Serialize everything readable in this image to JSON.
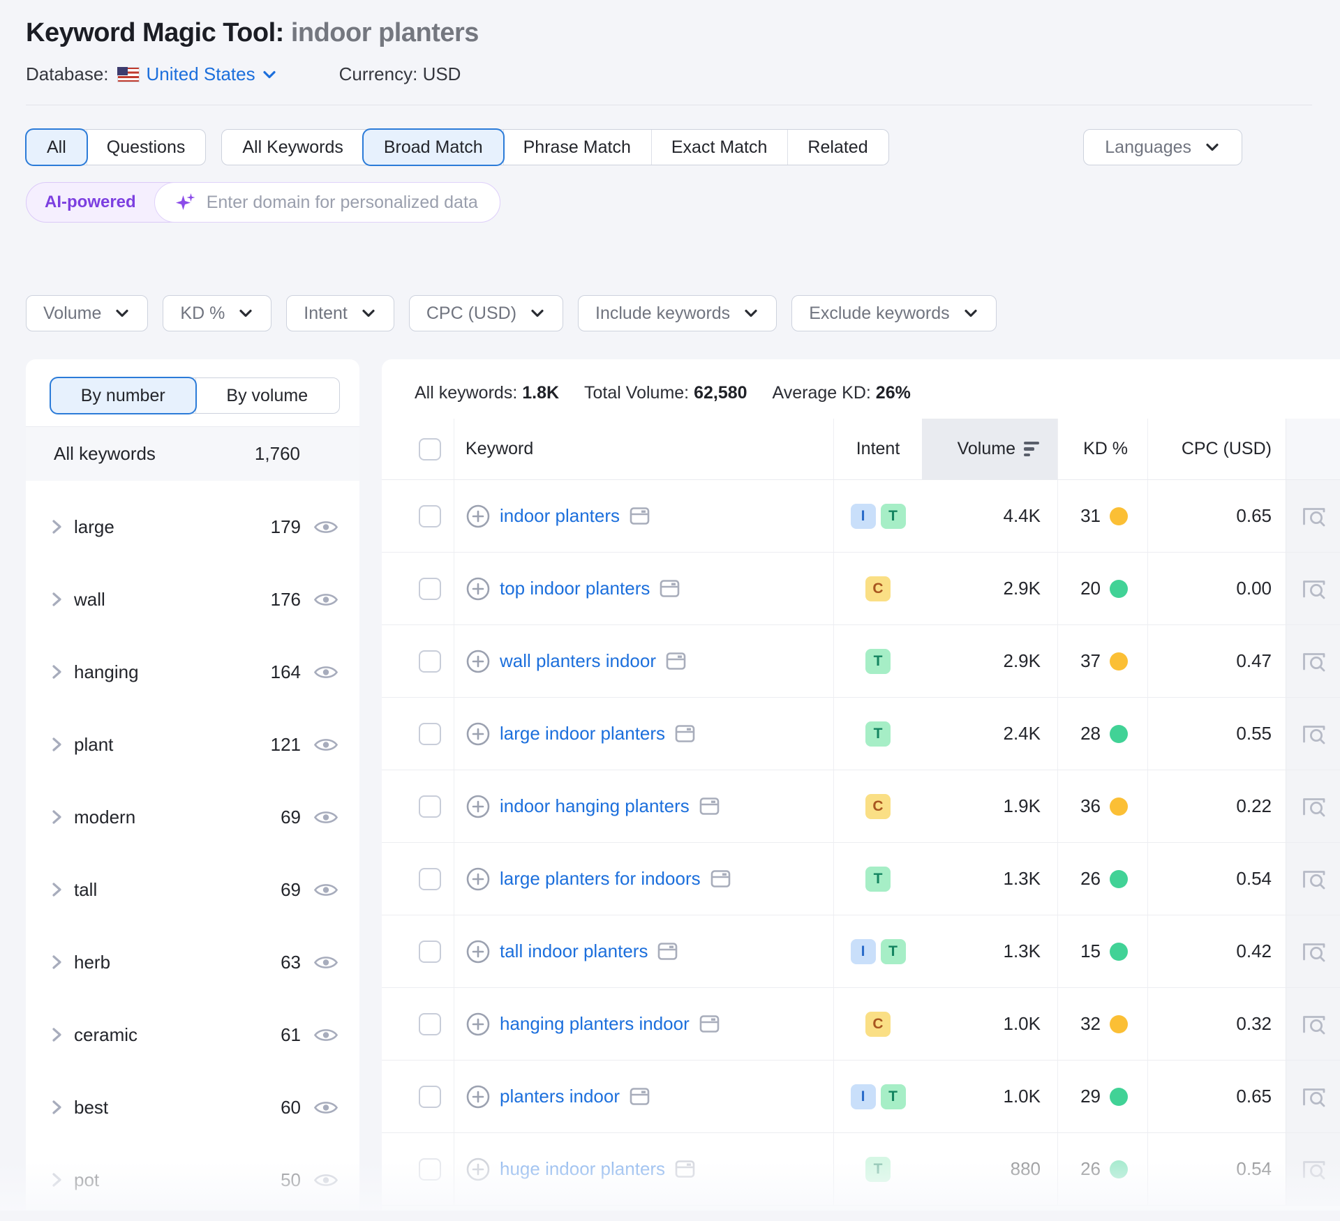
{
  "header": {
    "title": "Keyword Magic Tool:",
    "query": "indoor planters",
    "database_label": "Database:",
    "database_value": "United States",
    "currency_label": "Currency:",
    "currency_value": "USD"
  },
  "match_tabs": {
    "group1": [
      "All",
      "Questions"
    ],
    "group1_selected": "All",
    "group2": [
      "All Keywords",
      "Broad Match",
      "Phrase Match",
      "Exact Match",
      "Related"
    ],
    "group2_selected": "Broad Match",
    "languages_label": "Languages"
  },
  "ai_bar": {
    "badge": "AI-powered",
    "placeholder": "Enter domain for personalized data"
  },
  "filters": [
    "Volume",
    "KD %",
    "Intent",
    "CPC (USD)",
    "Include keywords",
    "Exclude keywords"
  ],
  "sidebar": {
    "toggle": [
      "By number",
      "By volume"
    ],
    "toggle_selected": "By number",
    "all_row": {
      "label": "All keywords",
      "count": "1,760"
    },
    "groups": [
      {
        "label": "large",
        "count": "179",
        "faded": false
      },
      {
        "label": "wall",
        "count": "176",
        "faded": false
      },
      {
        "label": "hanging",
        "count": "164",
        "faded": false
      },
      {
        "label": "plant",
        "count": "121",
        "faded": false
      },
      {
        "label": "modern",
        "count": "69",
        "faded": false
      },
      {
        "label": "tall",
        "count": "69",
        "faded": false
      },
      {
        "label": "herb",
        "count": "63",
        "faded": false
      },
      {
        "label": "ceramic",
        "count": "61",
        "faded": false
      },
      {
        "label": "best",
        "count": "60",
        "faded": false
      },
      {
        "label": "pot",
        "count": "50",
        "faded": true
      }
    ]
  },
  "summary": {
    "all_keywords_label": "All keywords:",
    "all_keywords_value": "1.8K",
    "total_volume_label": "Total Volume:",
    "total_volume_value": "62,580",
    "avg_kd_label": "Average KD:",
    "avg_kd_value": "26%"
  },
  "table": {
    "columns": [
      "Keyword",
      "Intent",
      "Volume",
      "KD %",
      "CPC (USD)"
    ],
    "sorted_column": "Volume",
    "rows": [
      {
        "keyword": "indoor planters",
        "intents": [
          "I",
          "T"
        ],
        "volume": "4.4K",
        "kd": "31",
        "kd_level": "orange",
        "cpc": "0.65",
        "faded": false
      },
      {
        "keyword": "top indoor planters",
        "intents": [
          "C"
        ],
        "volume": "2.9K",
        "kd": "20",
        "kd_level": "green",
        "cpc": "0.00",
        "faded": false
      },
      {
        "keyword": "wall planters indoor",
        "intents": [
          "T"
        ],
        "volume": "2.9K",
        "kd": "37",
        "kd_level": "orange",
        "cpc": "0.47",
        "faded": false
      },
      {
        "keyword": "large indoor planters",
        "intents": [
          "T"
        ],
        "volume": "2.4K",
        "kd": "28",
        "kd_level": "green",
        "cpc": "0.55",
        "faded": false
      },
      {
        "keyword": "indoor hanging planters",
        "intents": [
          "C"
        ],
        "volume": "1.9K",
        "kd": "36",
        "kd_level": "orange",
        "cpc": "0.22",
        "faded": false
      },
      {
        "keyword": "large planters for indoors",
        "intents": [
          "T"
        ],
        "volume": "1.3K",
        "kd": "26",
        "kd_level": "green",
        "cpc": "0.54",
        "faded": false
      },
      {
        "keyword": "tall indoor planters",
        "intents": [
          "I",
          "T"
        ],
        "volume": "1.3K",
        "kd": "15",
        "kd_level": "green",
        "cpc": "0.42",
        "faded": false
      },
      {
        "keyword": "hanging planters indoor",
        "intents": [
          "C"
        ],
        "volume": "1.0K",
        "kd": "32",
        "kd_level": "orange",
        "cpc": "0.32",
        "faded": false
      },
      {
        "keyword": "planters indoor",
        "intents": [
          "I",
          "T"
        ],
        "volume": "1.0K",
        "kd": "29",
        "kd_level": "green",
        "cpc": "0.65",
        "faded": false
      },
      {
        "keyword": "huge indoor planters",
        "intents": [
          "T"
        ],
        "volume": "880",
        "kd": "26",
        "kd_level": "green",
        "cpc": "0.54",
        "faded": true
      }
    ]
  },
  "colors": {
    "accent_blue": "#2B7BD8",
    "link_blue": "#1C6FDC",
    "ai_purple": "#7C3FE0",
    "intent_i_bg": "#C9DFFA",
    "intent_i_text": "#2A6BC9",
    "intent_t_bg": "#A6EEC6",
    "intent_t_text": "#148460",
    "intent_c_bg": "#FADF85",
    "intent_c_text": "#A8561F",
    "kd_orange": "#FBBF35",
    "kd_green": "#41D296"
  }
}
